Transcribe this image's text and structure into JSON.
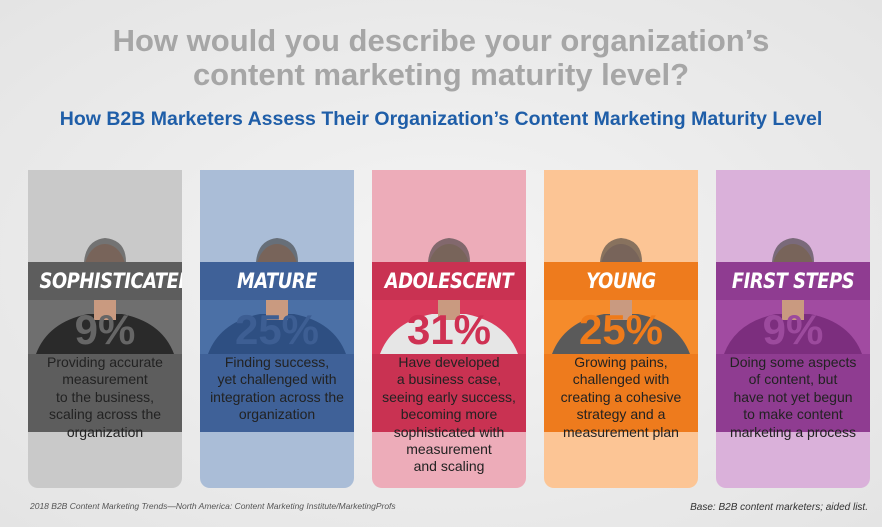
{
  "header": {
    "title_lines": [
      "How would you describe your organization’s",
      "content marketing maturity level?"
    ],
    "subtitle": "How B2B Marketers Assess Their Organization’s Content Marketing Maturity Level"
  },
  "cards": [
    {
      "label": "SOPHISTICATED",
      "percent": "9%",
      "description": [
        "Providing accurate",
        "measurement",
        "to the business,",
        "scaling across the",
        "organization"
      ]
    },
    {
      "label": "MATURE",
      "percent": "25%",
      "description": [
        "Finding success,",
        "yet challenged with",
        "integration across the",
        "organization"
      ]
    },
    {
      "label": "ADOLESCENT",
      "percent": "31%",
      "description": [
        "Have developed",
        "a business case,",
        "seeing early success,",
        "becoming more",
        "sophisticated with",
        "measurement",
        "and scaling"
      ]
    },
    {
      "label": "YOUNG",
      "percent": "25%",
      "description": [
        "Growing pains,",
        "challenged with",
        "creating a cohesive",
        "strategy and a",
        "measurement plan"
      ]
    },
    {
      "label": "FIRST STEPS",
      "percent": "9%",
      "description": [
        "Doing some aspects",
        "of content, but",
        "have not yet begun",
        "to make content",
        "marketing a process"
      ]
    }
  ],
  "footer": {
    "source": "2018 B2B Content Marketing Trends—North America: Content Marketing Institute/MarketingProfs",
    "base": "Base: B2B content marketers; aided list."
  }
}
